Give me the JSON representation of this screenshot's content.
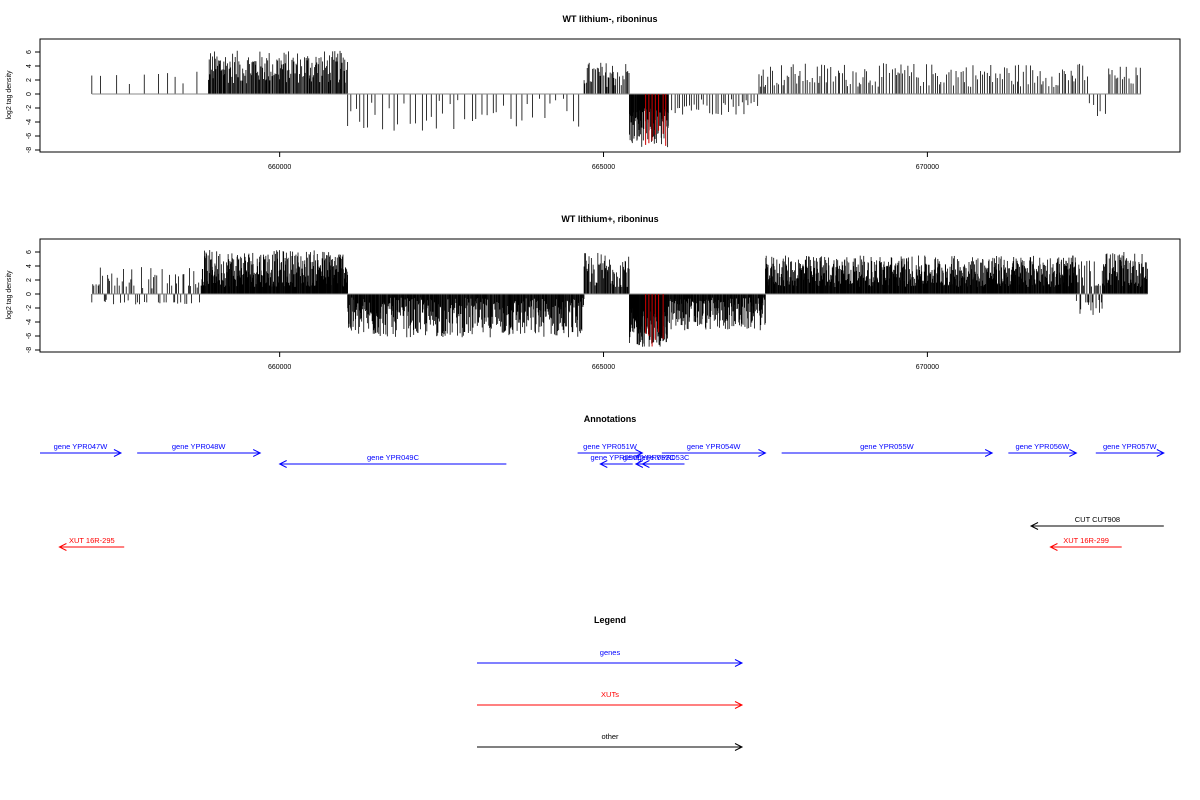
{
  "chart_data": [
    {
      "type": "bar",
      "title": "WT lithium-, riboninus",
      "ylabel": "log2 tag density",
      "xlabel": "",
      "ylim": [
        -8,
        7
      ],
      "yticks": [
        -8,
        -6,
        -4,
        -2,
        0,
        2,
        4,
        6
      ],
      "xlim": [
        656300,
        673900
      ],
      "xticks": [
        660000,
        665000,
        670000
      ],
      "colors": {
        "bars": "#000000",
        "highlight": "#cc0000",
        "baseline": "#888888"
      },
      "segments": [
        {
          "from": 657100,
          "to": 658800,
          "min": 1.0,
          "max": 3.5,
          "density": 0.006
        },
        {
          "from": 658900,
          "to": 661050,
          "min": 1.5,
          "max": 6.2,
          "density": 0.08
        },
        {
          "from": 661050,
          "to": 664700,
          "min": -5.3,
          "max": -0.5,
          "density": 0.012
        },
        {
          "from": 664700,
          "to": 665400,
          "min": 1.0,
          "max": 4.6,
          "density": 0.05
        },
        {
          "from": 665400,
          "to": 666000,
          "min": -7.6,
          "max": -2.0,
          "density": 0.15
        },
        {
          "from": 666000,
          "to": 667400,
          "min": -3.0,
          "max": -0.5,
          "density": 0.025
        },
        {
          "from": 667400,
          "to": 672500,
          "min": 1.0,
          "max": 4.4,
          "density": 0.03
        },
        {
          "from": 672500,
          "to": 672800,
          "min": -3.6,
          "max": -1.0,
          "density": 0.015
        },
        {
          "from": 672800,
          "to": 673300,
          "min": 1.0,
          "max": 4.0,
          "density": 0.03
        }
      ],
      "highlight_x": [
        665650,
        665700,
        665750,
        665800,
        665850,
        665920,
        665960
      ]
    },
    {
      "type": "bar",
      "title": "WT lithium+, riboninus",
      "ylabel": "log2 tag density",
      "xlabel": "",
      "ylim": [
        -8,
        7
      ],
      "yticks": [
        -8,
        -6,
        -4,
        -2,
        0,
        2,
        4,
        6
      ],
      "xlim": [
        656300,
        673900
      ],
      "xticks": [
        660000,
        665000,
        670000
      ],
      "colors": {
        "bars": "#000000",
        "highlight": "#cc0000",
        "baseline": "#888888"
      },
      "segments": [
        {
          "from": 657100,
          "to": 658800,
          "min": -1.5,
          "max": 4.0,
          "density": 0.04
        },
        {
          "from": 658800,
          "to": 661050,
          "min": 1.0,
          "max": 6.3,
          "density": 0.14
        },
        {
          "from": 661050,
          "to": 664700,
          "min": -6.2,
          "max": -0.5,
          "density": 0.12
        },
        {
          "from": 664700,
          "to": 665400,
          "min": 1.0,
          "max": 6.0,
          "density": 0.08
        },
        {
          "from": 665400,
          "to": 666000,
          "min": -7.6,
          "max": -2.0,
          "density": 0.2
        },
        {
          "from": 666000,
          "to": 667500,
          "min": -5.2,
          "max": -0.5,
          "density": 0.12
        },
        {
          "from": 667500,
          "to": 672300,
          "min": 1.0,
          "max": 5.5,
          "density": 0.13
        },
        {
          "from": 672300,
          "to": 672700,
          "min": -3.0,
          "max": 5.0,
          "density": 0.08
        },
        {
          "from": 672700,
          "to": 673400,
          "min": 1.0,
          "max": 6.0,
          "density": 0.12
        }
      ],
      "highlight_x": [
        665650,
        665700,
        665750,
        665800,
        665850,
        665920
      ]
    }
  ],
  "annotations": {
    "title": "Annotations",
    "tracks": [
      {
        "label": "gene YPR047W",
        "from": 656300,
        "to": 657550,
        "dir": "right",
        "color": "#0000ff",
        "row": 0
      },
      {
        "label": "gene YPR048W",
        "from": 657800,
        "to": 659700,
        "dir": "right",
        "color": "#0000ff",
        "row": 0
      },
      {
        "label": "gene YPR049C",
        "from": 660000,
        "to": 663500,
        "dir": "left",
        "color": "#0000ff",
        "row": 1
      },
      {
        "label": "gene YPR051W",
        "from": 664600,
        "to": 665600,
        "dir": "right",
        "color": "#0000ff",
        "row": 0
      },
      {
        "label": "gene YPR050C",
        "from": 664950,
        "to": 665450,
        "dir": "left",
        "color": "#0000ff",
        "row": 1
      },
      {
        "label": "gene YPR052C",
        "from": 665500,
        "to": 665900,
        "dir": "left",
        "color": "#0000ff",
        "row": 1
      },
      {
        "label": "gene YPR053C",
        "from": 665600,
        "to": 666250,
        "dir": "left",
        "color": "#0000ff",
        "row": 1
      },
      {
        "label": "gene YPR054W",
        "from": 665900,
        "to": 667500,
        "dir": "right",
        "color": "#0000ff",
        "row": 0
      },
      {
        "label": "gene YPR055W",
        "from": 667750,
        "to": 671000,
        "dir": "right",
        "color": "#0000ff",
        "row": 0
      },
      {
        "label": "gene YPR056W",
        "from": 671250,
        "to": 672300,
        "dir": "right",
        "color": "#0000ff",
        "row": 0
      },
      {
        "label": "gene YPR057W",
        "from": 672600,
        "to": 673650,
        "dir": "right",
        "color": "#0000ff",
        "row": 0
      },
      {
        "label": "CUT CUT908",
        "from": 671600,
        "to": 673650,
        "dir": "left",
        "color": "#000000",
        "row": 2
      },
      {
        "label": "XUT 16R-295",
        "from": 656600,
        "to": 657600,
        "dir": "left",
        "color": "#ff0000",
        "row": 3
      },
      {
        "label": "XUT 16R-299",
        "from": 671900,
        "to": 673000,
        "dir": "left",
        "color": "#ff0000",
        "row": 3
      }
    ]
  },
  "legend": {
    "title": "Legend",
    "items": [
      {
        "label": "genes",
        "color": "#0000ff"
      },
      {
        "label": "XUTs",
        "color": "#ff0000"
      },
      {
        "label": "other",
        "color": "#000000"
      }
    ]
  }
}
